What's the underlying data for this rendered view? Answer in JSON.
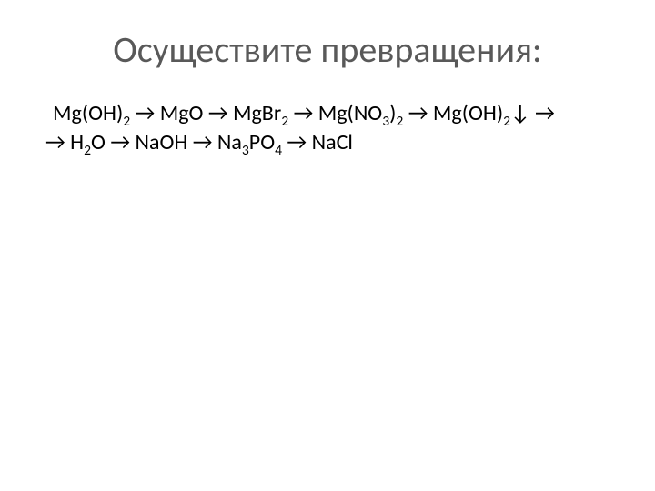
{
  "title_fontsize": 40,
  "title_color": "#595959",
  "body_fontsize": 24,
  "body_color": "#000000",
  "background_color": "#ffffff",
  "title": "Осуществите   превращения:",
  "chain": {
    "line1_parts": [
      "Mg(OH)",
      "2",
      "  →  MgO  →  MgBr",
      "2",
      "  → Mg(NO",
      "3",
      ")",
      "2",
      "  →   Mg(OH)",
      "2",
      "↓ →"
    ],
    "line2_parts": [
      "→ H",
      "2",
      "O → NaOH  → Na",
      "3",
      "PO",
      "4",
      " → NaCl"
    ]
  }
}
